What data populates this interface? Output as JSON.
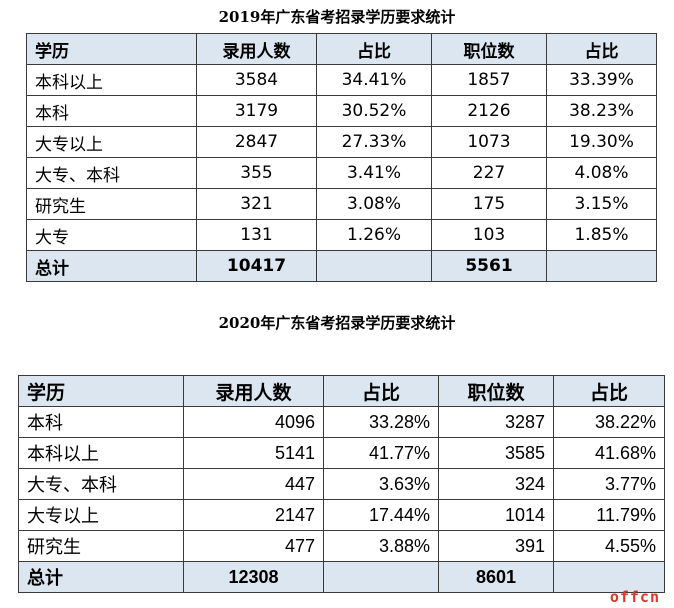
{
  "table1": {
    "title": "2019年广东省考招录学历要求统计",
    "headers": [
      "学历",
      "录用人数",
      "占比",
      "职位数",
      "占比"
    ],
    "rows": [
      [
        "本科以上",
        "3584",
        "34.41%",
        "1857",
        "33.39%"
      ],
      [
        "本科",
        "3179",
        "30.52%",
        "2126",
        "38.23%"
      ],
      [
        "大专以上",
        "2847",
        "27.33%",
        "1073",
        "19.30%"
      ],
      [
        "大专、本科",
        "355",
        "3.41%",
        "227",
        "4.08%"
      ],
      [
        "研究生",
        "321",
        "3.08%",
        "175",
        "3.15%"
      ],
      [
        "大专",
        "131",
        "1.26%",
        "103",
        "1.85%"
      ]
    ],
    "total": [
      "总计",
      "10417",
      "",
      "5561",
      ""
    ]
  },
  "table2": {
    "title": "2020年广东省考招录学历要求统计",
    "headers": [
      "学历",
      "录用人数",
      "占比",
      "职位数",
      "占比"
    ],
    "rows": [
      [
        "本科",
        "4096",
        "33.28%",
        "3287",
        "38.22%"
      ],
      [
        "本科以上",
        "5141",
        "41.77%",
        "3585",
        "41.68%"
      ],
      [
        "大专、本科",
        "447",
        "3.63%",
        "324",
        "3.77%"
      ],
      [
        "大专以上",
        "2147",
        "17.44%",
        "1014",
        "11.79%"
      ],
      [
        "研究生",
        "477",
        "3.88%",
        "391",
        "4.55%"
      ]
    ],
    "total": [
      "总计",
      "12308",
      "",
      "8601",
      ""
    ]
  },
  "watermark": "offcn",
  "colors": {
    "header_bg": "#dce6f1",
    "watermark": "#d9372a"
  }
}
